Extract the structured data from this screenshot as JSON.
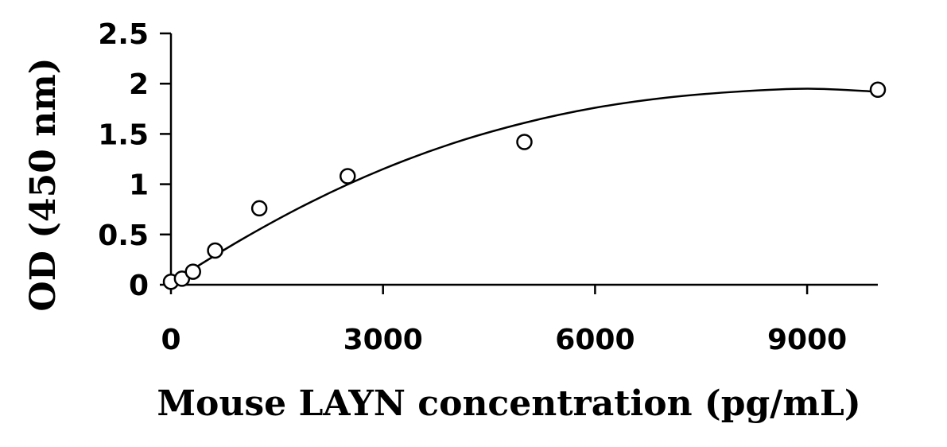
{
  "chart_data": {
    "type": "scatter",
    "title": "",
    "xlabel": "Mouse LAYN concentration (pg/mL)",
    "ylabel": "OD (450 nm)",
    "xlim": [
      0,
      10000
    ],
    "ylim": [
      0,
      2.5
    ],
    "xticks": [
      0,
      3000,
      6000,
      9000
    ],
    "xtick_labels": [
      "0",
      "3000",
      "6000",
      "9000"
    ],
    "yticks": [
      0,
      0.5,
      1,
      1.5,
      2,
      2.5
    ],
    "ytick_labels": [
      "0",
      "0.5",
      "1",
      "1.5",
      "2",
      "2.5"
    ],
    "grid": false,
    "legend": "none",
    "series": [
      {
        "marker": "open-circle",
        "x": [
          0,
          156,
          312,
          625,
          1250,
          2500,
          5000,
          10000
        ],
        "y": [
          0.03,
          0.06,
          0.13,
          0.34,
          0.76,
          1.08,
          1.42,
          1.94
        ]
      }
    ],
    "fit": {
      "type": "polynomial-2",
      "x": [
        0,
        1000,
        2000,
        3000,
        4000,
        5000,
        6000,
        7000,
        8000,
        9000,
        10000
      ],
      "y": [
        0.02,
        0.45,
        0.83,
        1.15,
        1.41,
        1.61,
        1.76,
        1.86,
        1.92,
        1.95,
        1.92
      ]
    }
  }
}
